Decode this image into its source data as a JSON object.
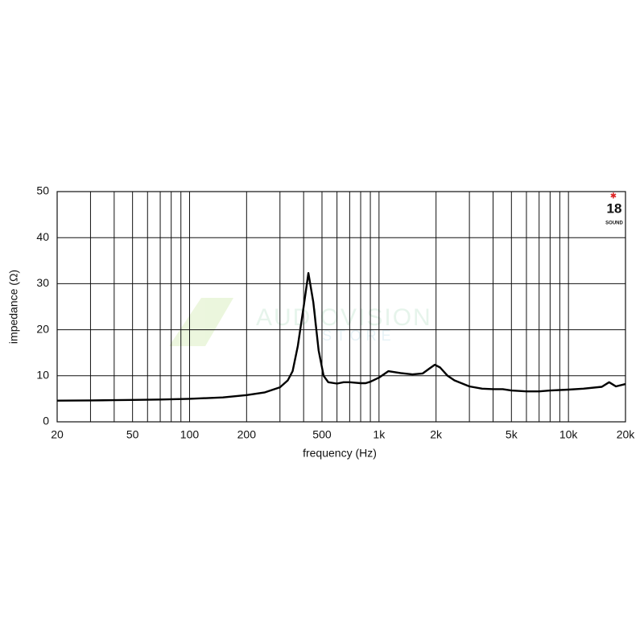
{
  "chart_data": {
    "type": "line",
    "xlabel": "frequency (Hz)",
    "ylabel": "impedance (Ω)",
    "xscale": "log",
    "grid": true,
    "xlim": [
      20,
      20000
    ],
    "ylim": [
      0,
      50
    ],
    "xticks": [
      20,
      50,
      100,
      200,
      500,
      {
        "value": 1000,
        "label": "1k"
      },
      {
        "value": 2000,
        "label": "2k"
      },
      {
        "value": 5000,
        "label": "5k"
      },
      {
        "value": 10000,
        "label": "10k"
      },
      {
        "value": 20000,
        "label": "20k"
      }
    ],
    "xminorticks": [
      30,
      40,
      60,
      70,
      80,
      90,
      300,
      400,
      600,
      700,
      800,
      900,
      3000,
      4000,
      6000,
      7000,
      8000,
      9000
    ],
    "yticks": [
      0,
      10,
      20,
      30,
      40,
      50
    ],
    "x": [
      20,
      30,
      40,
      50,
      70,
      100,
      150,
      200,
      250,
      300,
      330,
      350,
      373,
      400,
      424,
      450,
      480,
      510,
      540,
      600,
      650,
      700,
      750,
      800,
      850,
      900,
      1000,
      1120,
      1300,
      1500,
      1700,
      1850,
      1970,
      2100,
      2300,
      2500,
      3000,
      3500,
      4000,
      4500,
      5000,
      6000,
      7000,
      8000,
      10000,
      12000,
      15000,
      16400,
      17800,
      20000
    ],
    "series": [
      {
        "name": "impedance",
        "color": "#000000",
        "values": [
          4.6,
          4.65,
          4.7,
          4.75,
          4.85,
          5.0,
          5.3,
          5.8,
          6.4,
          7.5,
          9.0,
          11.0,
          16.5,
          25.0,
          32.3,
          26.0,
          15.5,
          10.0,
          8.6,
          8.3,
          8.6,
          8.6,
          8.5,
          8.4,
          8.4,
          8.7,
          9.6,
          11.0,
          10.6,
          10.3,
          10.5,
          11.6,
          12.4,
          11.8,
          10.0,
          9.0,
          7.7,
          7.2,
          7.1,
          7.1,
          6.8,
          6.6,
          6.6,
          6.8,
          7.0,
          7.2,
          7.6,
          8.6,
          7.7,
          8.2
        ]
      }
    ]
  },
  "logo": {
    "number": "18",
    "name": "SOUND"
  },
  "watermark": {
    "line1": "AUDIOVISION",
    "line2": "STORE"
  }
}
